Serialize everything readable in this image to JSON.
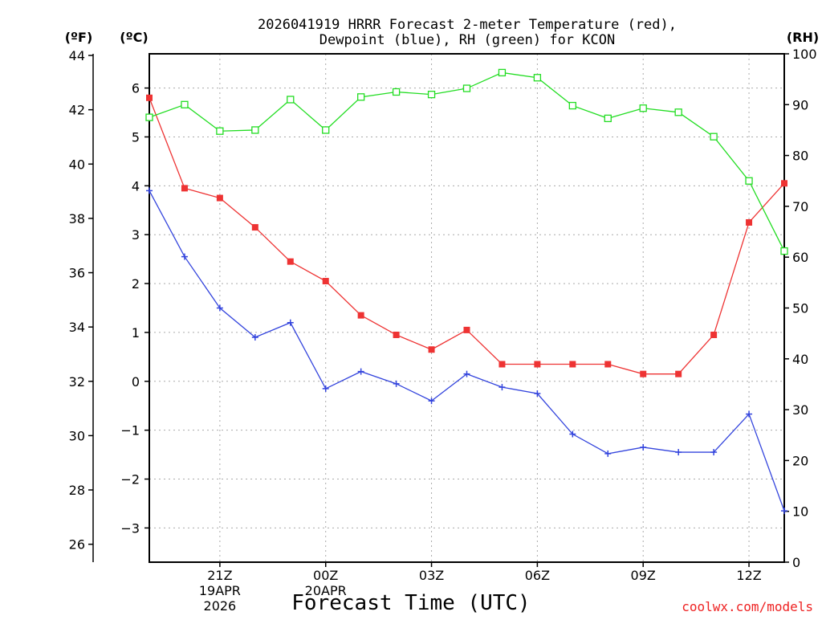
{
  "chart_data": {
    "type": "line",
    "title_line1": "2026041919 HRRR Forecast 2-meter Temperature (red),",
    "title_line2": "Dewpoint (blue), RH (green) for KCON",
    "xlabel": "Forecast Time (UTC)",
    "credit": "coolwx.com/models",
    "colors": {
      "temperature": "#ee3333",
      "dewpoint": "#3344dd",
      "rh": "#22dd22",
      "grid": "#aaaaaa",
      "credit": "#ee2222"
    },
    "x_hours": [
      0,
      1,
      2,
      3,
      4,
      5,
      6,
      7,
      8,
      9,
      10,
      11,
      12,
      13,
      14,
      15,
      16,
      17,
      18
    ],
    "x_tick_labels": [
      {
        "hour": 2,
        "label": "21Z",
        "sub1": "19APR",
        "sub2": "2026"
      },
      {
        "hour": 5,
        "label": "00Z",
        "sub1": "20APR",
        "sub2": ""
      },
      {
        "hour": 8,
        "label": "03Z",
        "sub1": "",
        "sub2": ""
      },
      {
        "hour": 11,
        "label": "06Z",
        "sub1": "",
        "sub2": ""
      },
      {
        "hour": 14,
        "label": "09Z",
        "sub1": "",
        "sub2": ""
      },
      {
        "hour": 17,
        "label": "12Z",
        "sub1": "",
        "sub2": ""
      }
    ],
    "xlim": [
      0,
      18
    ],
    "axes": {
      "celsius": {
        "unit_label": "(ºC)",
        "lim": [
          -3.7,
          6.7
        ],
        "ticks": [
          -3,
          -2,
          -1,
          0,
          1,
          2,
          3,
          4,
          5,
          6
        ],
        "tick_labels": [
          "−3",
          "−2",
          "−1",
          "0",
          "1",
          "2",
          "3",
          "4",
          "5",
          "6"
        ]
      },
      "fahrenheit": {
        "unit_label": "(ºF)",
        "ticks": [
          26,
          28,
          30,
          32,
          34,
          36,
          38,
          40,
          42,
          44
        ],
        "tick_labels": [
          "26",
          "28",
          "30",
          "32",
          "34",
          "36",
          "38",
          "40",
          "42",
          "44"
        ]
      },
      "rh": {
        "unit_label": "(RH)",
        "lim": [
          0,
          100
        ],
        "ticks": [
          0,
          10,
          20,
          30,
          40,
          50,
          60,
          70,
          80,
          90,
          100
        ],
        "tick_labels": [
          "0",
          "10",
          "20",
          "30",
          "40",
          "50",
          "60",
          "70",
          "80",
          "90",
          "100"
        ]
      }
    },
    "grid": true,
    "series": [
      {
        "name": "Temperature",
        "axis": "celsius",
        "marker": "filled-square",
        "values": [
          5.8,
          3.95,
          3.75,
          3.15,
          2.45,
          2.05,
          1.35,
          0.95,
          0.65,
          1.05,
          0.35,
          0.35,
          0.35,
          0.35,
          0.15,
          0.15,
          0.95,
          3.25,
          4.05
        ]
      },
      {
        "name": "Dewpoint",
        "axis": "celsius",
        "marker": "plus",
        "values": [
          3.9,
          2.55,
          1.5,
          0.9,
          1.2,
          -0.15,
          0.2,
          -0.05,
          -0.4,
          0.15,
          -0.12,
          -0.25,
          -1.08,
          -1.48,
          -1.35,
          -1.45,
          -1.45,
          -0.67,
          -2.65
        ]
      },
      {
        "name": "RH",
        "axis": "rh",
        "marker": "open-square",
        "values": [
          87.5,
          90,
          84.8,
          85,
          91,
          85,
          91.5,
          92.5,
          92,
          93.2,
          96.3,
          95.3,
          89.8,
          87.3,
          89.3,
          88.5,
          83.7,
          75,
          61.2
        ]
      }
    ]
  }
}
